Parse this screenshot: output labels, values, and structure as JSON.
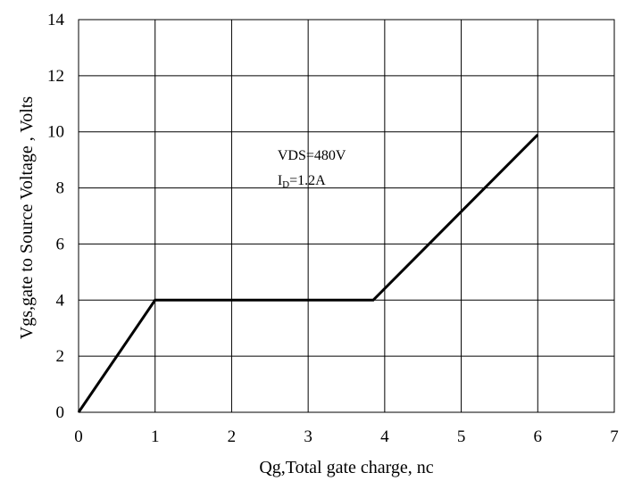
{
  "chart_data": {
    "type": "line",
    "title": "",
    "xlabel": "Qg,Total gate charge, nc",
    "ylabel": "Vgs,gate to Source Voltage , Volts",
    "xlim": [
      0,
      7
    ],
    "ylim": [
      0,
      14
    ],
    "xticks": [
      0,
      1,
      2,
      3,
      4,
      5,
      6,
      7
    ],
    "yticks": [
      0,
      2,
      4,
      6,
      8,
      10,
      12,
      14
    ],
    "xtick_labels": [
      "0",
      "1",
      "2",
      "3",
      "4",
      "5",
      "6",
      "7"
    ],
    "ytick_labels": [
      "0",
      "2",
      "4",
      "6",
      "8",
      "10",
      "12",
      "14"
    ],
    "grid": true,
    "legend": "none",
    "series": [
      {
        "x": [
          0,
          1,
          3.85,
          6
        ],
        "y": [
          0,
          4,
          4,
          9.9
        ]
      }
    ],
    "annotations": [
      {
        "text": "VDS=480V",
        "x": 2.6,
        "y": 9.2
      },
      {
        "text_main": "I",
        "text_sub": "D",
        "text_rest": "=1.2A",
        "x": 2.6,
        "y": 8.3
      }
    ],
    "colors": {
      "line": "#000000",
      "grid": "#000000",
      "background": "#ffffff"
    }
  }
}
